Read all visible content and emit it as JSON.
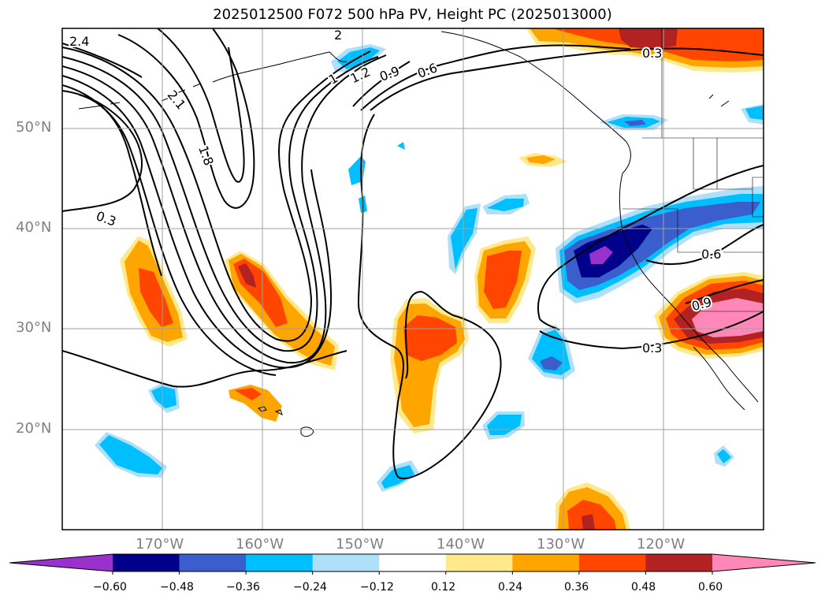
{
  "title": "2025012500 F072 500 hPa PV, Height PC (2025013000)",
  "map": {
    "lat_labels": [
      "50°N",
      "40°N",
      "30°N",
      "20°N"
    ],
    "lon_labels": [
      "170°W",
      "160°W",
      "150°W",
      "140°W",
      "130°W",
      "120°W"
    ],
    "contour_labels": [
      "2.4",
      "2.1",
      "1.8",
      "1.2",
      "0.9",
      "0.6",
      "0.3",
      "0.3",
      "0.6",
      "0.9",
      "0.3",
      "2",
      "1"
    ]
  },
  "colorbar": {
    "ticks": [
      "−0.60",
      "−0.48",
      "−0.36",
      "−0.24",
      "−0.12",
      "0.12",
      "0.24",
      "0.36",
      "0.48",
      "0.60"
    ],
    "colors": [
      "#9932cc",
      "#00008b",
      "#3a5fcd",
      "#00bfff",
      "#aee0fa",
      "#ffffff",
      "#ffe98a",
      "#ffa500",
      "#ff4500",
      "#b22222",
      "#ff88b8"
    ]
  }
}
